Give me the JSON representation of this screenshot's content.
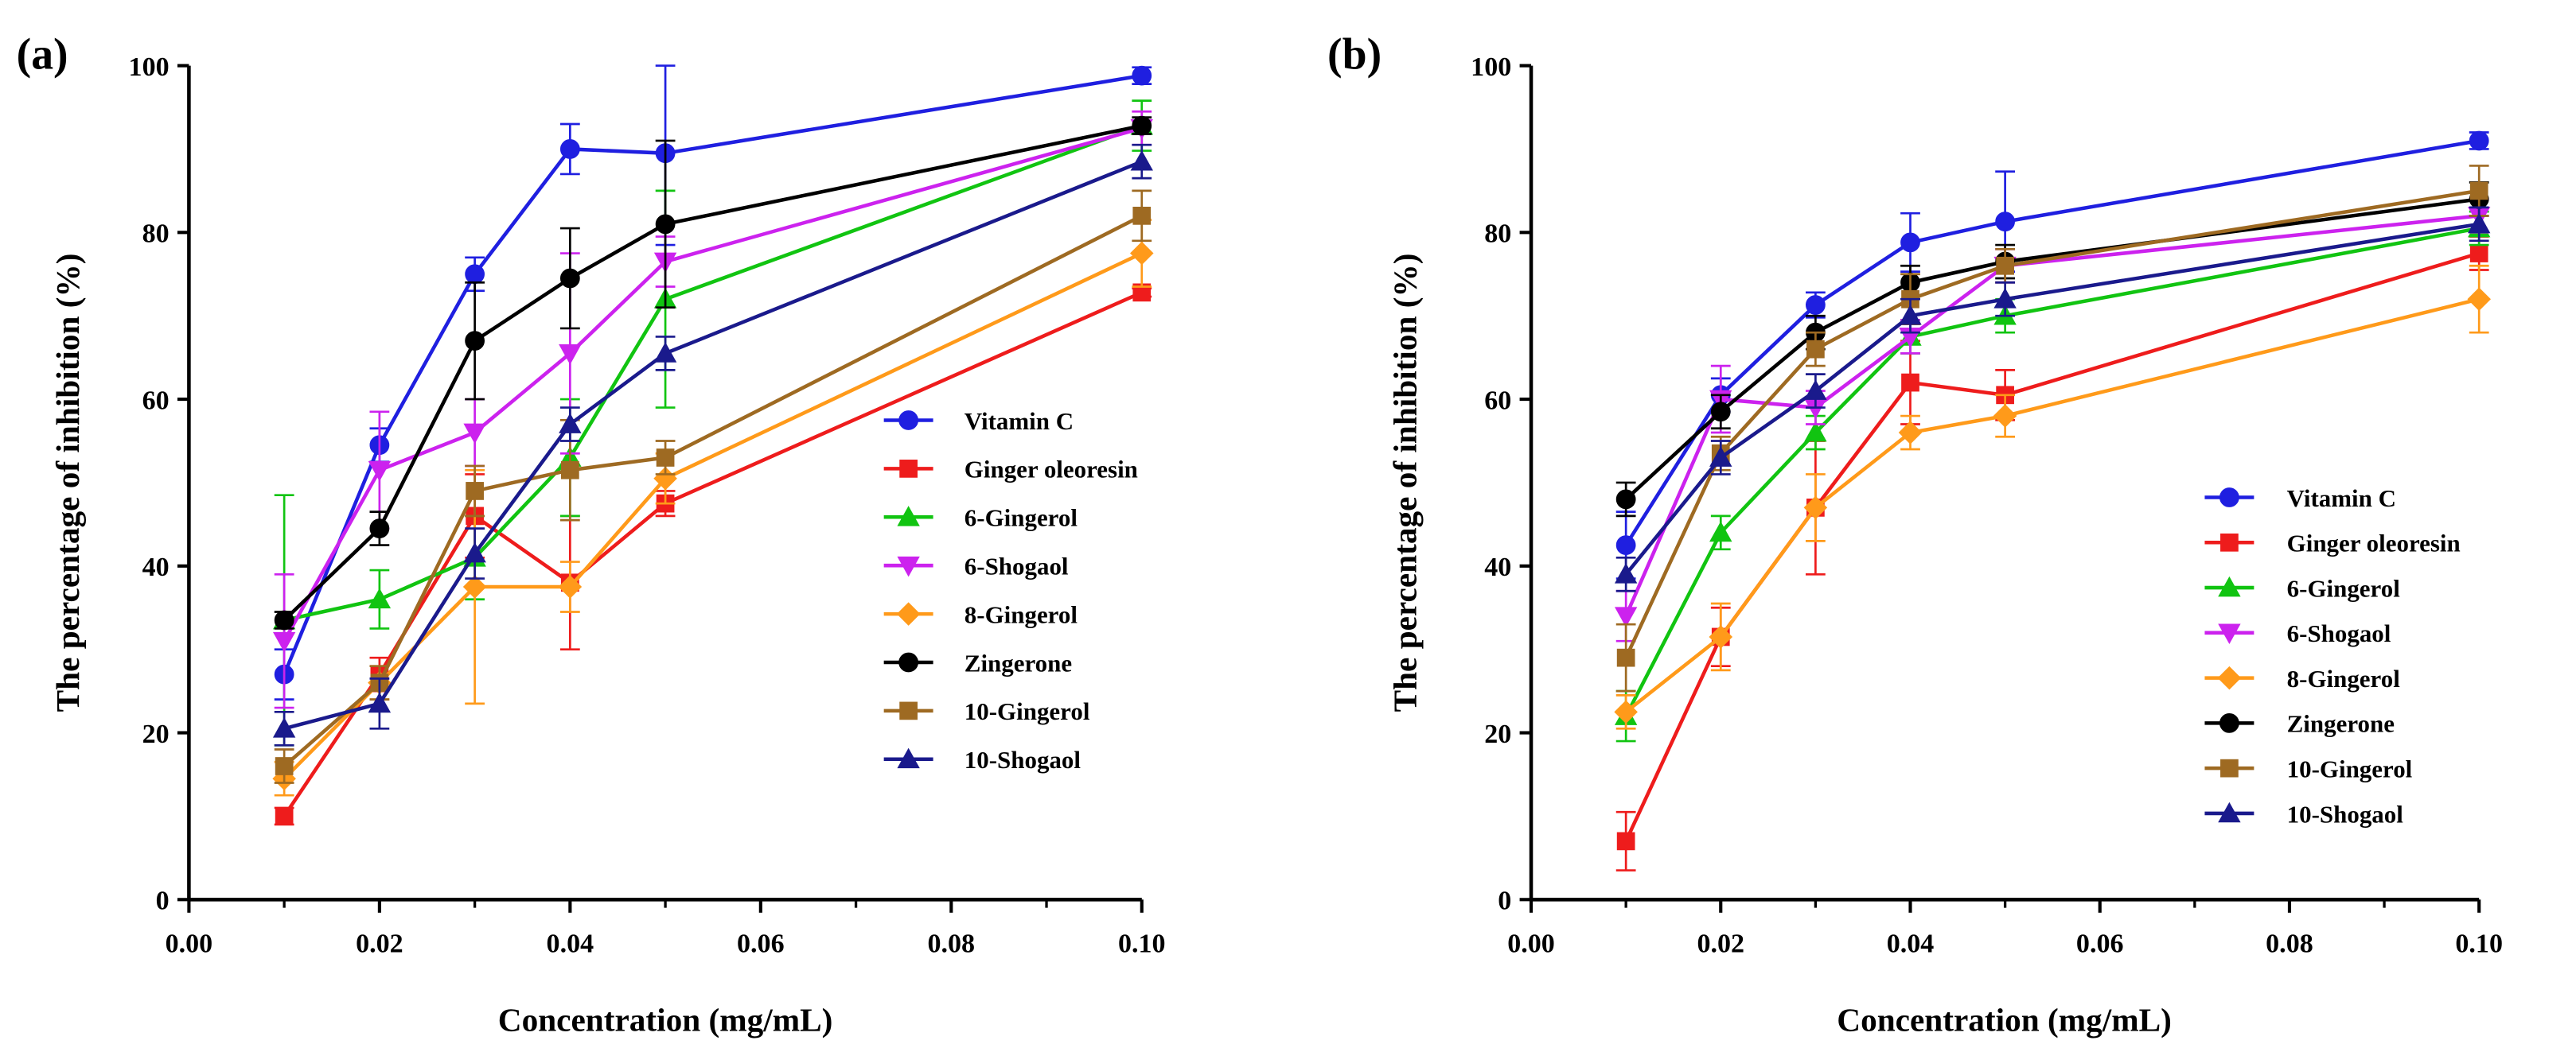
{
  "chart_data": [
    {
      "type": "line",
      "panel_label": "(a)",
      "xlabel": "Concentration (mg/mL)",
      "ylabel": "The percentage of inhibition (%)",
      "xlim": [
        0,
        0.1
      ],
      "ylim": [
        0,
        100
      ],
      "x_ticks": [
        "0.00",
        "0.02",
        "0.04",
        "0.06",
        "0.08",
        "0.10"
      ],
      "y_ticks": [
        "0",
        "20",
        "40",
        "60",
        "80",
        "100"
      ],
      "legend_position": "lower-right",
      "x": [
        0.01,
        0.02,
        0.03,
        0.04,
        0.05,
        0.1
      ],
      "series": [
        {
          "name": "Vitamin C",
          "color": "#1f1fe0",
          "marker": "circle",
          "values": [
            27,
            54.5,
            75,
            90,
            89.5,
            98.8
          ],
          "errors": [
            3,
            2,
            2,
            3,
            11,
            1
          ]
        },
        {
          "name": "Ginger oleoresin",
          "color": "#ee1c1c",
          "marker": "square",
          "values": [
            10,
            27,
            46,
            38,
            47.5,
            72.8
          ],
          "errors": [
            1,
            2,
            5,
            8,
            1.5,
            0.5
          ]
        },
        {
          "name": "6-Gingerol",
          "color": "#11c411",
          "marker": "triangle-up",
          "values": [
            33.5,
            36,
            41,
            53,
            72,
            92.8
          ],
          "errors": [
            15,
            3.5,
            5,
            7,
            13,
            3
          ]
        },
        {
          "name": "6-Shogaol",
          "color": "#cc22ee",
          "marker": "triangle-down",
          "values": [
            31,
            51.5,
            56,
            65.5,
            76.5,
            92.5
          ],
          "errors": [
            8,
            7,
            4,
            12,
            3,
            2
          ]
        },
        {
          "name": "8-Gingerol",
          "color": "#ff9a1a",
          "marker": "diamond",
          "values": [
            14.5,
            26,
            37.5,
            37.5,
            50.5,
            77.5
          ],
          "errors": [
            2,
            2,
            14,
            3,
            3,
            4
          ]
        },
        {
          "name": "Zingerone",
          "color": "#000000",
          "marker": "circle",
          "values": [
            33.5,
            44.5,
            67,
            74.5,
            81,
            92.8
          ],
          "errors": [
            1,
            2,
            7,
            6,
            10,
            1
          ]
        },
        {
          "name": "10-Gingerol",
          "color": "#9e6a22",
          "marker": "square",
          "values": [
            16,
            26,
            49,
            51.5,
            53,
            82
          ],
          "errors": [
            2,
            2,
            3,
            6,
            2,
            3
          ]
        },
        {
          "name": "10-Shogaol",
          "color": "#1a1a8c",
          "marker": "triangle-up",
          "values": [
            20.5,
            23.5,
            41.5,
            57,
            65.5,
            88.5
          ],
          "errors": [
            2,
            3,
            3,
            2,
            2,
            2
          ]
        }
      ]
    },
    {
      "type": "line",
      "panel_label": "(b)",
      "xlabel": "Concentration (mg/mL)",
      "ylabel": "The percentage of inhibition (%)",
      "xlim": [
        0,
        0.1
      ],
      "ylim": [
        0,
        100
      ],
      "x_ticks": [
        "0.00",
        "0.02",
        "0.04",
        "0.06",
        "0.08",
        "0.10"
      ],
      "y_ticks": [
        "0",
        "20",
        "40",
        "60",
        "80",
        "100"
      ],
      "legend_position": "lower-right",
      "x": [
        0.01,
        0.02,
        0.03,
        0.04,
        0.05,
        0.1
      ],
      "series": [
        {
          "name": "Vitamin C",
          "color": "#1f1fe0",
          "marker": "circle",
          "values": [
            42.5,
            60.5,
            71.3,
            78.8,
            81.3,
            91
          ],
          "errors": [
            4,
            2,
            1.5,
            3.5,
            6,
            1
          ]
        },
        {
          "name": "Ginger oleoresin",
          "color": "#ee1c1c",
          "marker": "square",
          "values": [
            7,
            31.5,
            47,
            62,
            60.5,
            77.5
          ],
          "errors": [
            3.5,
            3.5,
            8,
            5,
            3,
            2
          ]
        },
        {
          "name": "6-Gingerol",
          "color": "#11c411",
          "marker": "triangle-up",
          "values": [
            22,
            44,
            56,
            67.5,
            70,
            80.5
          ],
          "errors": [
            3,
            2,
            2,
            2,
            2,
            2
          ]
        },
        {
          "name": "6-Shogaol",
          "color": "#cc22ee",
          "marker": "triangle-down",
          "values": [
            34,
            60,
            59,
            67.5,
            76,
            82
          ],
          "errors": [
            3,
            4,
            2,
            2,
            2,
            2
          ]
        },
        {
          "name": "8-Gingerol",
          "color": "#ff9a1a",
          "marker": "diamond",
          "values": [
            22.5,
            31.5,
            47,
            56,
            58,
            72
          ],
          "errors": [
            2,
            4,
            4,
            2,
            2.5,
            4
          ]
        },
        {
          "name": "Zingerone",
          "color": "#000000",
          "marker": "circle",
          "values": [
            48,
            58.5,
            68,
            74,
            76.5,
            84
          ],
          "errors": [
            2,
            2,
            2,
            2,
            2,
            2
          ]
        },
        {
          "name": "10-Gingerol",
          "color": "#9e6a22",
          "marker": "square",
          "values": [
            29,
            53.5,
            66,
            72,
            76,
            85
          ],
          "errors": [
            4,
            2,
            2,
            3,
            2,
            3
          ]
        },
        {
          "name": "10-Shogaol",
          "color": "#1a1a8c",
          "marker": "triangle-up",
          "values": [
            39,
            53,
            61,
            70,
            72,
            81
          ],
          "errors": [
            2,
            2,
            2,
            2,
            2,
            2
          ]
        }
      ]
    }
  ]
}
